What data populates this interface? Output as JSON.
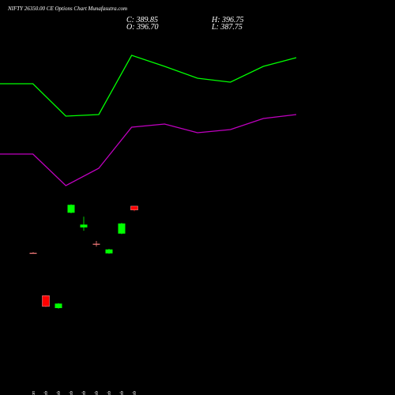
{
  "chart_data": [
    {
      "type": "candlestick",
      "title": "NIFTY 26350.00 CE Options  Chart Munafasutra.com",
      "readout": [
        "C: 389.85",
        "H: 396.75",
        "O: 396.70",
        "L: 387.75"
      ],
      "categories": [
        "29 Jan",
        "01 Feb",
        "02 Feb",
        "03 Feb",
        "04 Feb",
        "05 Feb",
        "06 Feb",
        "09 Feb",
        "10 Feb"
      ],
      "open": [
        314,
        238,
        216,
        385,
        359,
        330,
        313,
        348,
        396.7
      ],
      "high": [
        315,
        239,
        225,
        400,
        378,
        335,
        321,
        367,
        396.75
      ],
      "low": [
        313,
        218,
        215,
        384,
        353,
        325,
        312,
        347,
        387.75
      ],
      "close": [
        314,
        219,
        224,
        399,
        364,
        329,
        320,
        366,
        389.85
      ],
      "colors": [
        "#ff8080",
        "#ff0000",
        "#00ff00",
        "#00ff00",
        "#00ff00",
        "#ff8080",
        "#00ff00",
        "#00ff00",
        "#ff0000"
      ],
      "ylim": [
        62,
        762
      ]
    },
    {
      "type": "line",
      "x": [
        0,
        1,
        2,
        3,
        4,
        5,
        6,
        7,
        8,
        9
      ],
      "xlim": [
        0,
        9
      ],
      "ylim": [
        62,
        762
      ],
      "series": [
        {
          "color": "#00ff00",
          "values": [
            613.6,
            613.6,
            556.2,
            559,
            664,
            644.4,
            623.4,
            616.4,
            644.4,
            659.8
          ]
        },
        {
          "color": "#c000c0",
          "values": [
            489,
            489,
            433,
            463.8,
            536.6,
            542.2,
            526.8,
            532.4,
            552,
            559
          ]
        }
      ]
    }
  ]
}
